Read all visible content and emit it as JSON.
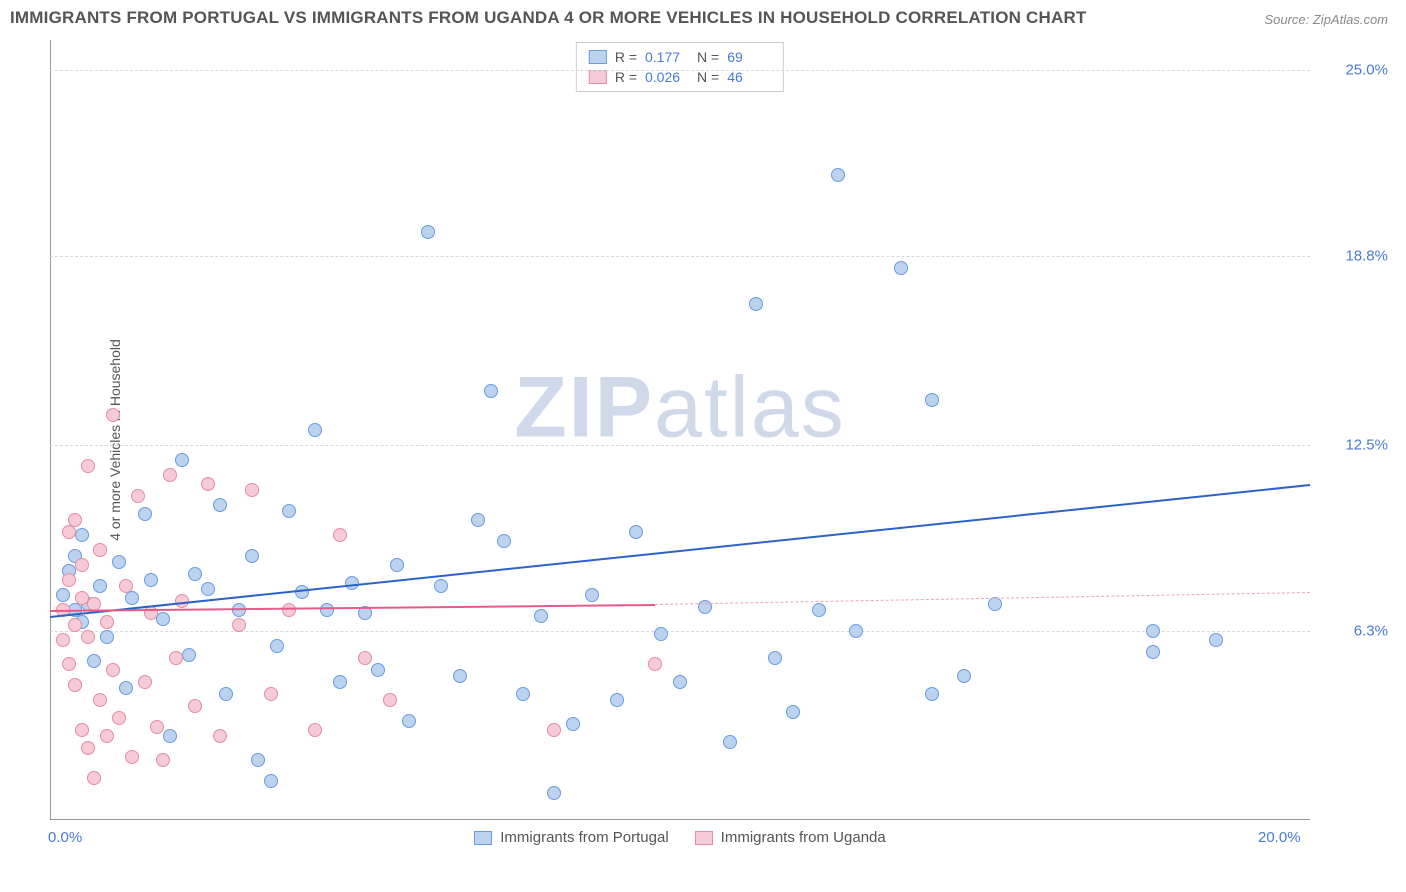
{
  "title": "IMMIGRANTS FROM PORTUGAL VS IMMIGRANTS FROM UGANDA 4 OR MORE VEHICLES IN HOUSEHOLD CORRELATION CHART",
  "source": "Source: ZipAtlas.com",
  "ylabel": "4 or more Vehicles in Household",
  "watermark_a": "ZIP",
  "watermark_b": "atlas",
  "chart": {
    "type": "scatter",
    "xlim": [
      0,
      20
    ],
    "ylim": [
      0,
      26
    ],
    "xticks": [
      {
        "v": 0,
        "label": "0.0%"
      },
      {
        "v": 20,
        "label": "20.0%"
      }
    ],
    "yticks": [
      {
        "v": 6.3,
        "label": "6.3%"
      },
      {
        "v": 12.5,
        "label": "12.5%"
      },
      {
        "v": 18.8,
        "label": "18.8%"
      },
      {
        "v": 25.0,
        "label": "25.0%"
      }
    ],
    "grid_color": "#d9d9d9",
    "axis_color": "#999999",
    "background_color": "#ffffff",
    "point_radius": 7,
    "series": [
      {
        "key": "portugal",
        "label": "Immigrants from Portugal",
        "color_fill": "#bcd3f0",
        "color_stroke": "#6a9adf",
        "R": "0.177",
        "N": "69",
        "trend": {
          "x0": 0,
          "y0": 6.8,
          "x1": 20,
          "y1": 11.2,
          "color": "#2c62c8",
          "width": 2,
          "dash": false
        },
        "points": [
          [
            0.2,
            7.5
          ],
          [
            0.3,
            8.3
          ],
          [
            0.4,
            7.0
          ],
          [
            0.4,
            8.8
          ],
          [
            0.5,
            6.6
          ],
          [
            0.5,
            9.5
          ],
          [
            0.6,
            7.2
          ],
          [
            0.7,
            5.3
          ],
          [
            0.8,
            7.8
          ],
          [
            0.9,
            6.1
          ],
          [
            1.1,
            8.6
          ],
          [
            1.2,
            4.4
          ],
          [
            1.3,
            7.4
          ],
          [
            1.5,
            10.2
          ],
          [
            1.6,
            8.0
          ],
          [
            1.8,
            6.7
          ],
          [
            1.9,
            2.8
          ],
          [
            2.1,
            12.0
          ],
          [
            2.2,
            5.5
          ],
          [
            2.3,
            8.2
          ],
          [
            2.5,
            7.7
          ],
          [
            2.7,
            10.5
          ],
          [
            2.8,
            4.2
          ],
          [
            3.0,
            7.0
          ],
          [
            3.2,
            8.8
          ],
          [
            3.3,
            2.0
          ],
          [
            3.5,
            1.3
          ],
          [
            3.6,
            5.8
          ],
          [
            3.8,
            10.3
          ],
          [
            4.0,
            7.6
          ],
          [
            4.2,
            13.0
          ],
          [
            4.4,
            7.0
          ],
          [
            4.6,
            4.6
          ],
          [
            4.8,
            7.9
          ],
          [
            5.0,
            6.9
          ],
          [
            5.2,
            5.0
          ],
          [
            5.5,
            8.5
          ],
          [
            5.7,
            3.3
          ],
          [
            6.0,
            19.6
          ],
          [
            6.2,
            7.8
          ],
          [
            6.5,
            4.8
          ],
          [
            6.8,
            10.0
          ],
          [
            7.0,
            14.3
          ],
          [
            7.2,
            9.3
          ],
          [
            7.5,
            4.2
          ],
          [
            7.8,
            6.8
          ],
          [
            8.0,
            0.9
          ],
          [
            8.3,
            3.2
          ],
          [
            8.6,
            7.5
          ],
          [
            9.0,
            4.0
          ],
          [
            9.3,
            9.6
          ],
          [
            9.7,
            6.2
          ],
          [
            10.0,
            4.6
          ],
          [
            10.4,
            7.1
          ],
          [
            10.8,
            2.6
          ],
          [
            11.2,
            17.2
          ],
          [
            11.5,
            5.4
          ],
          [
            11.8,
            3.6
          ],
          [
            12.2,
            7.0
          ],
          [
            12.5,
            21.5
          ],
          [
            12.8,
            6.3
          ],
          [
            13.5,
            18.4
          ],
          [
            14.0,
            4.2
          ],
          [
            14.0,
            14.0
          ],
          [
            14.5,
            4.8
          ],
          [
            15.0,
            7.2
          ],
          [
            17.5,
            6.3
          ],
          [
            17.5,
            5.6
          ],
          [
            18.5,
            6.0
          ]
        ]
      },
      {
        "key": "uganda",
        "label": "Immigrants from Uganda",
        "color_fill": "#f6cbd7",
        "color_stroke": "#e58ba6",
        "R": "0.026",
        "N": "46",
        "trend": {
          "x0": 0,
          "y0": 7.0,
          "x1": 9.6,
          "y1": 7.2,
          "color": "#e65a8a",
          "width": 2,
          "dash": false
        },
        "trend_ext": {
          "x0": 9.6,
          "y0": 7.2,
          "x1": 20,
          "y1": 7.6,
          "color": "#e9a5b9",
          "width": 1,
          "dash": true
        },
        "points": [
          [
            0.2,
            6.0
          ],
          [
            0.2,
            7.0
          ],
          [
            0.3,
            5.2
          ],
          [
            0.3,
            8.0
          ],
          [
            0.3,
            9.6
          ],
          [
            0.4,
            4.5
          ],
          [
            0.4,
            6.5
          ],
          [
            0.4,
            10.0
          ],
          [
            0.5,
            3.0
          ],
          [
            0.5,
            7.4
          ],
          [
            0.5,
            8.5
          ],
          [
            0.6,
            2.4
          ],
          [
            0.6,
            6.1
          ],
          [
            0.6,
            11.8
          ],
          [
            0.7,
            1.4
          ],
          [
            0.7,
            7.2
          ],
          [
            0.8,
            4.0
          ],
          [
            0.8,
            9.0
          ],
          [
            0.9,
            2.8
          ],
          [
            0.9,
            6.6
          ],
          [
            1.0,
            13.5
          ],
          [
            1.0,
            5.0
          ],
          [
            1.1,
            3.4
          ],
          [
            1.2,
            7.8
          ],
          [
            1.3,
            2.1
          ],
          [
            1.4,
            10.8
          ],
          [
            1.5,
            4.6
          ],
          [
            1.6,
            6.9
          ],
          [
            1.7,
            3.1
          ],
          [
            1.8,
            2.0
          ],
          [
            1.9,
            11.5
          ],
          [
            2.0,
            5.4
          ],
          [
            2.1,
            7.3
          ],
          [
            2.3,
            3.8
          ],
          [
            2.5,
            11.2
          ],
          [
            2.7,
            2.8
          ],
          [
            3.0,
            6.5
          ],
          [
            3.2,
            11.0
          ],
          [
            3.5,
            4.2
          ],
          [
            3.8,
            7.0
          ],
          [
            4.2,
            3.0
          ],
          [
            4.6,
            9.5
          ],
          [
            5.0,
            5.4
          ],
          [
            5.4,
            4.0
          ],
          [
            8.0,
            3.0
          ],
          [
            9.6,
            5.2
          ]
        ]
      }
    ]
  }
}
